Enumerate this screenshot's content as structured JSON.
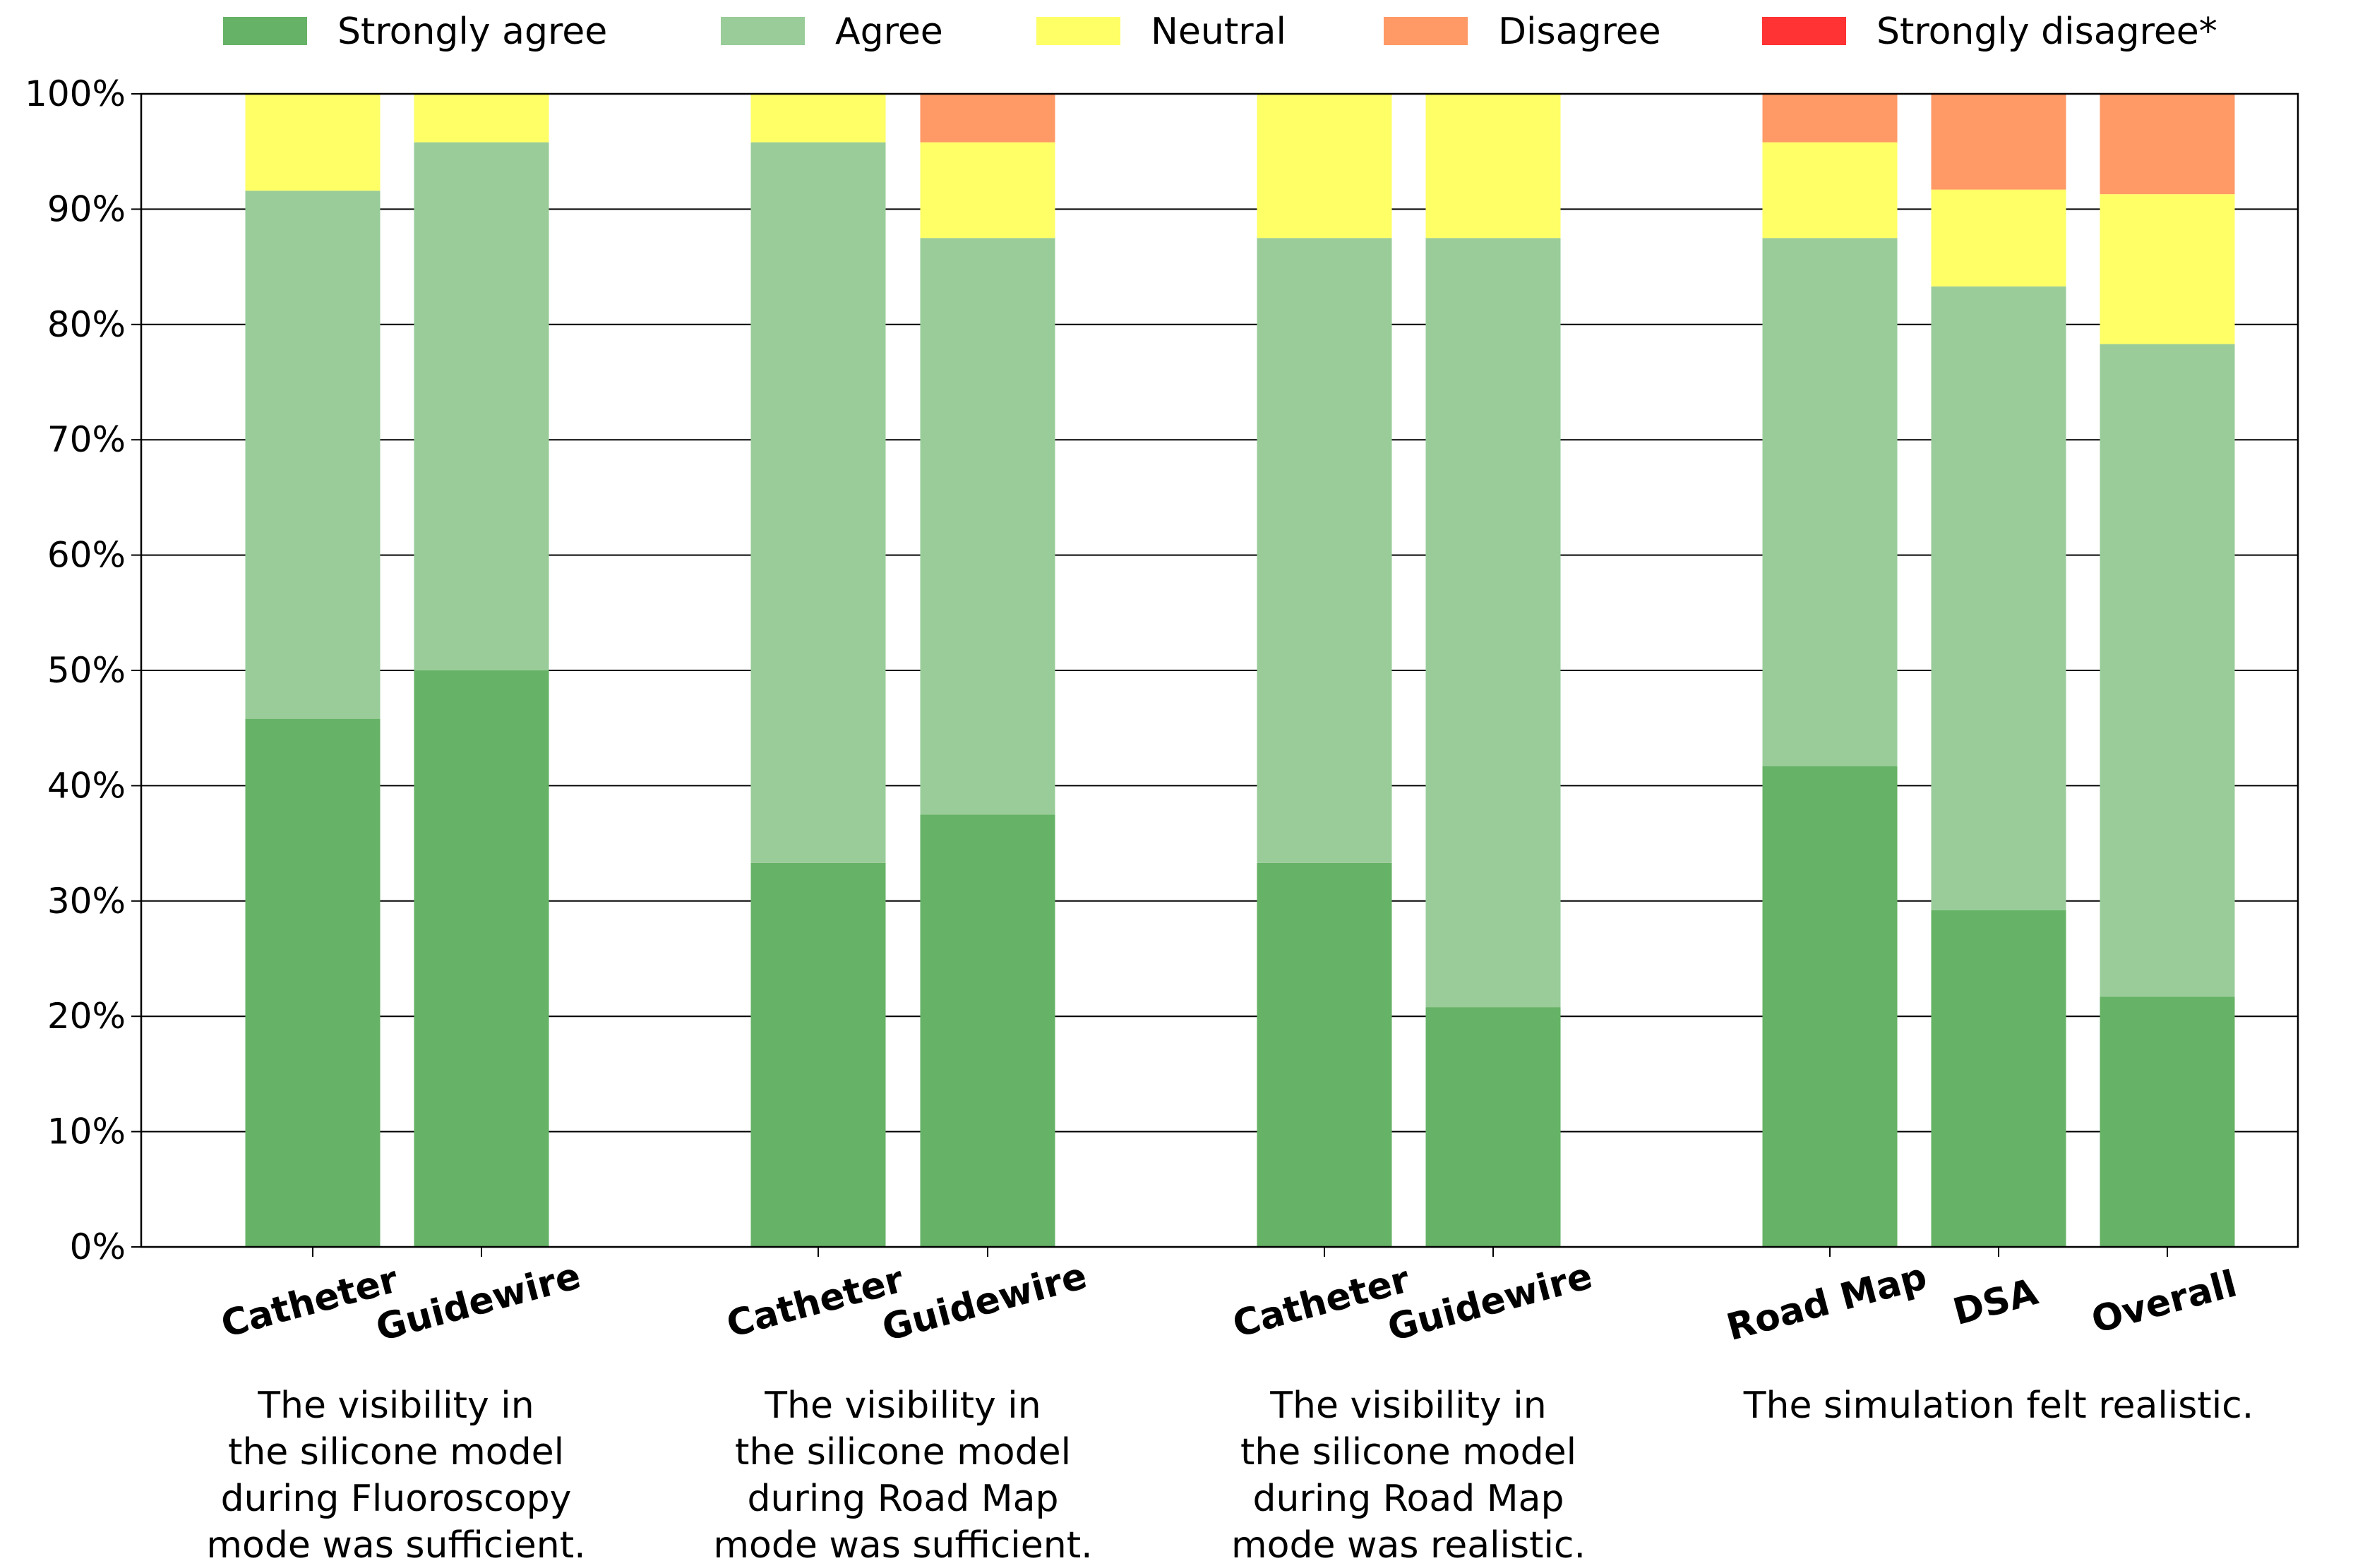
{
  "chart_data": {
    "type": "bar",
    "stacked": true,
    "orientation": "vertical",
    "value_unit": "%",
    "ylim": [
      0,
      100
    ],
    "y_ticks": [
      "0%",
      "10%",
      "20%",
      "30%",
      "40%",
      "50%",
      "60%",
      "70%",
      "80%",
      "90%",
      "100%"
    ],
    "grid": "horizontal",
    "legend_position": "top",
    "series": [
      {
        "name": "Strongly agree",
        "color": "#66b266"
      },
      {
        "name": "Agree",
        "color": "#99cc99"
      },
      {
        "name": "Neutral",
        "color": "#ffff66"
      },
      {
        "name": "Disagree",
        "color": "#ff9966"
      },
      {
        "name": "Strongly disagree*",
        "color": "#ff3333"
      }
    ],
    "groups": [
      {
        "caption": [
          "The visibility in",
          "the silicone model",
          "during Fluoroscopy",
          "mode was sufficient."
        ],
        "bars": [
          {
            "label": "Catheter",
            "values": [
              45.8,
              45.8,
              8.4,
              0,
              0
            ]
          },
          {
            "label": "Guidewire",
            "values": [
              50.0,
              45.8,
              4.2,
              0,
              0
            ]
          }
        ]
      },
      {
        "caption": [
          "The visibility in",
          "the silicone model",
          "during Road Map",
          "mode was sufficient."
        ],
        "bars": [
          {
            "label": "Catheter",
            "values": [
              33.3,
              62.5,
              4.2,
              0,
              0
            ]
          },
          {
            "label": "Guidewire",
            "values": [
              37.5,
              50.0,
              8.3,
              4.2,
              0
            ]
          }
        ]
      },
      {
        "caption": [
          "The visibility in",
          "the silicone model",
          "during Road Map",
          "mode was realistic."
        ],
        "bars": [
          {
            "label": "Catheter",
            "values": [
              33.3,
              54.2,
              12.5,
              0,
              0
            ]
          },
          {
            "label": "Guidewire",
            "values": [
              20.8,
              66.7,
              12.5,
              0,
              0
            ]
          }
        ]
      },
      {
        "caption": [
          "The simulation felt realistic."
        ],
        "bars": [
          {
            "label": "Road Map",
            "values": [
              41.7,
              45.8,
              8.3,
              4.2,
              0
            ]
          },
          {
            "label": "DSA",
            "values": [
              29.2,
              54.1,
              8.4,
              8.3,
              0
            ]
          },
          {
            "label": "Overall",
            "values": [
              21.7,
              56.6,
              13.0,
              8.7,
              0
            ]
          }
        ]
      }
    ]
  }
}
